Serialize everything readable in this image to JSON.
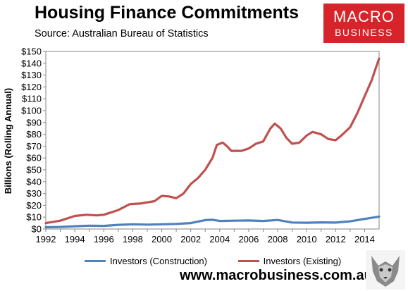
{
  "header": {
    "title": "Housing Finance Commitments",
    "source": "Source: Australian Bureau of Statistics"
  },
  "logo": {
    "line1": "MACRO",
    "line2": "BUSINESS"
  },
  "footer": {
    "website": "www.macrobusiness.com.au"
  },
  "colors": {
    "construction": "#4f81bd",
    "existing": "#c0504d",
    "logo_bg": "#d6242a"
  },
  "chart_data": {
    "type": "line",
    "title": "Housing Finance Commitments",
    "ylabel": "Billions (Rolling Annual)",
    "xlabel": "",
    "xlim": [
      1992,
      2015
    ],
    "ylim": [
      0,
      150
    ],
    "x_ticks": [
      "1992",
      "1994",
      "1996",
      "1998",
      "2000",
      "2002",
      "2004",
      "2006",
      "2008",
      "2010",
      "2012",
      "2014"
    ],
    "y_ticks": [
      "$0",
      "$10",
      "$20",
      "$30",
      "$40",
      "$50",
      "$60",
      "$70",
      "$80",
      "$90",
      "$100",
      "$110",
      "$120",
      "$130",
      "$140",
      "$150"
    ],
    "legend_position": "bottom",
    "grid": false,
    "series": [
      {
        "name": "Investors (Construction)",
        "color": "#4f81bd",
        "points": [
          [
            1992,
            1.5
          ],
          [
            1993,
            1.7
          ],
          [
            1994,
            2.3
          ],
          [
            1995,
            2.8
          ],
          [
            1996,
            2.6
          ],
          [
            1997,
            3.5
          ],
          [
            1998,
            4.0
          ],
          [
            1999,
            3.7
          ],
          [
            2000,
            4.0
          ],
          [
            2001,
            4.3
          ],
          [
            2002,
            5.0
          ],
          [
            2003,
            7.5
          ],
          [
            2003.5,
            7.8
          ],
          [
            2004,
            6.8
          ],
          [
            2005,
            7.0
          ],
          [
            2006,
            7.2
          ],
          [
            2007,
            6.8
          ],
          [
            2008,
            7.6
          ],
          [
            2009,
            5.5
          ],
          [
            2010,
            5.3
          ],
          [
            2011,
            5.6
          ],
          [
            2012,
            5.4
          ],
          [
            2013,
            6.5
          ],
          [
            2014,
            8.5
          ],
          [
            2015,
            10.5
          ]
        ]
      },
      {
        "name": "Investors (Existing)",
        "color": "#c0504d",
        "points": [
          [
            1992,
            5
          ],
          [
            1993,
            7
          ],
          [
            1994,
            11
          ],
          [
            1994.8,
            12
          ],
          [
            1995.5,
            11.5
          ],
          [
            1996,
            12
          ],
          [
            1997,
            16
          ],
          [
            1997.8,
            21
          ],
          [
            1998.5,
            21.5
          ],
          [
            1999.5,
            23.5
          ],
          [
            2000,
            28
          ],
          [
            2000.5,
            27.5
          ],
          [
            2001,
            26
          ],
          [
            2001.5,
            30
          ],
          [
            2002,
            38
          ],
          [
            2002.5,
            43
          ],
          [
            2003,
            50
          ],
          [
            2003.5,
            60
          ],
          [
            2003.8,
            71
          ],
          [
            2004.2,
            73
          ],
          [
            2004.5,
            70
          ],
          [
            2004.8,
            66
          ],
          [
            2005.5,
            66
          ],
          [
            2006,
            68
          ],
          [
            2006.5,
            72
          ],
          [
            2007,
            74
          ],
          [
            2007.5,
            85
          ],
          [
            2007.8,
            89
          ],
          [
            2008.2,
            85
          ],
          [
            2008.6,
            77
          ],
          [
            2009,
            72
          ],
          [
            2009.5,
            73
          ],
          [
            2010,
            79
          ],
          [
            2010.4,
            82
          ],
          [
            2011,
            80
          ],
          [
            2011.5,
            76
          ],
          [
            2012,
            75
          ],
          [
            2012.4,
            79
          ],
          [
            2013,
            86
          ],
          [
            2013.5,
            98
          ],
          [
            2014,
            112
          ],
          [
            2014.5,
            126
          ],
          [
            2014.8,
            137
          ],
          [
            2015,
            144
          ]
        ]
      }
    ]
  }
}
